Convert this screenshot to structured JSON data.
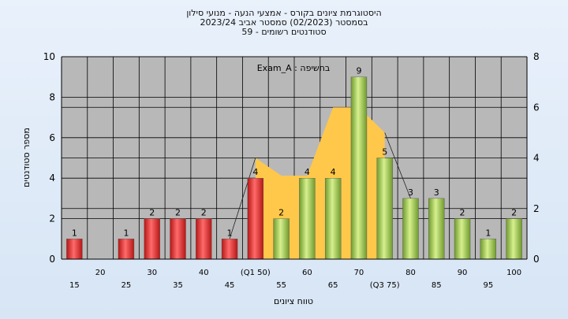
{
  "chart_data": {
    "type": "bar",
    "title_lines": [
      "היסטוגרמת ציונים בקורס - אמצעי הנעה - מנועי סילון",
      "בסמסטר  (02/2023)  סמסטר אביב 2023/24",
      "סטודנטים רשומים - 59"
    ],
    "annotation": "בחשיפה : Exam_A",
    "xlabel": "טווח ציונים",
    "ylabel": "מספר סטודנטים",
    "ylim": [
      0,
      10
    ],
    "yticks": [
      0,
      2,
      4,
      6,
      8,
      10
    ],
    "y2lim": [
      0,
      8
    ],
    "y2ticks": [
      0,
      2,
      4,
      6,
      8
    ],
    "grid": true,
    "categories": [
      "15",
      "20",
      "25",
      "30",
      "35",
      "40",
      "45",
      "(Q1 50)",
      "55",
      "60",
      "65",
      "70",
      "(Q3 75)",
      "80",
      "85",
      "90",
      "95",
      "100"
    ],
    "values": [
      1,
      0,
      1,
      2,
      2,
      2,
      1,
      4,
      2,
      4,
      4,
      9,
      5,
      3,
      3,
      2,
      1,
      2
    ],
    "value_labels": [
      "1",
      "",
      "1",
      "2",
      "2",
      "2",
      "1",
      "4",
      "2",
      "4",
      "4",
      "9",
      "5",
      "3",
      "3",
      "2",
      "1",
      "2"
    ],
    "bar_colors": [
      "red",
      "red",
      "red",
      "red",
      "red",
      "red",
      "red",
      "red",
      "green",
      "green",
      "green",
      "green",
      "green",
      "green",
      "green",
      "green",
      "green",
      "green"
    ],
    "area_series": {
      "axis": "secondary",
      "start_index": 7,
      "end_index": 12,
      "values": [
        4,
        3.3,
        3.3,
        6,
        6,
        5
      ]
    },
    "colors": {
      "red_bar": "#e03030",
      "green_bar": "#9ccc4e",
      "area": "#ffc84a",
      "plot_bg": "#b8b8b8",
      "grid": "#000000"
    }
  }
}
